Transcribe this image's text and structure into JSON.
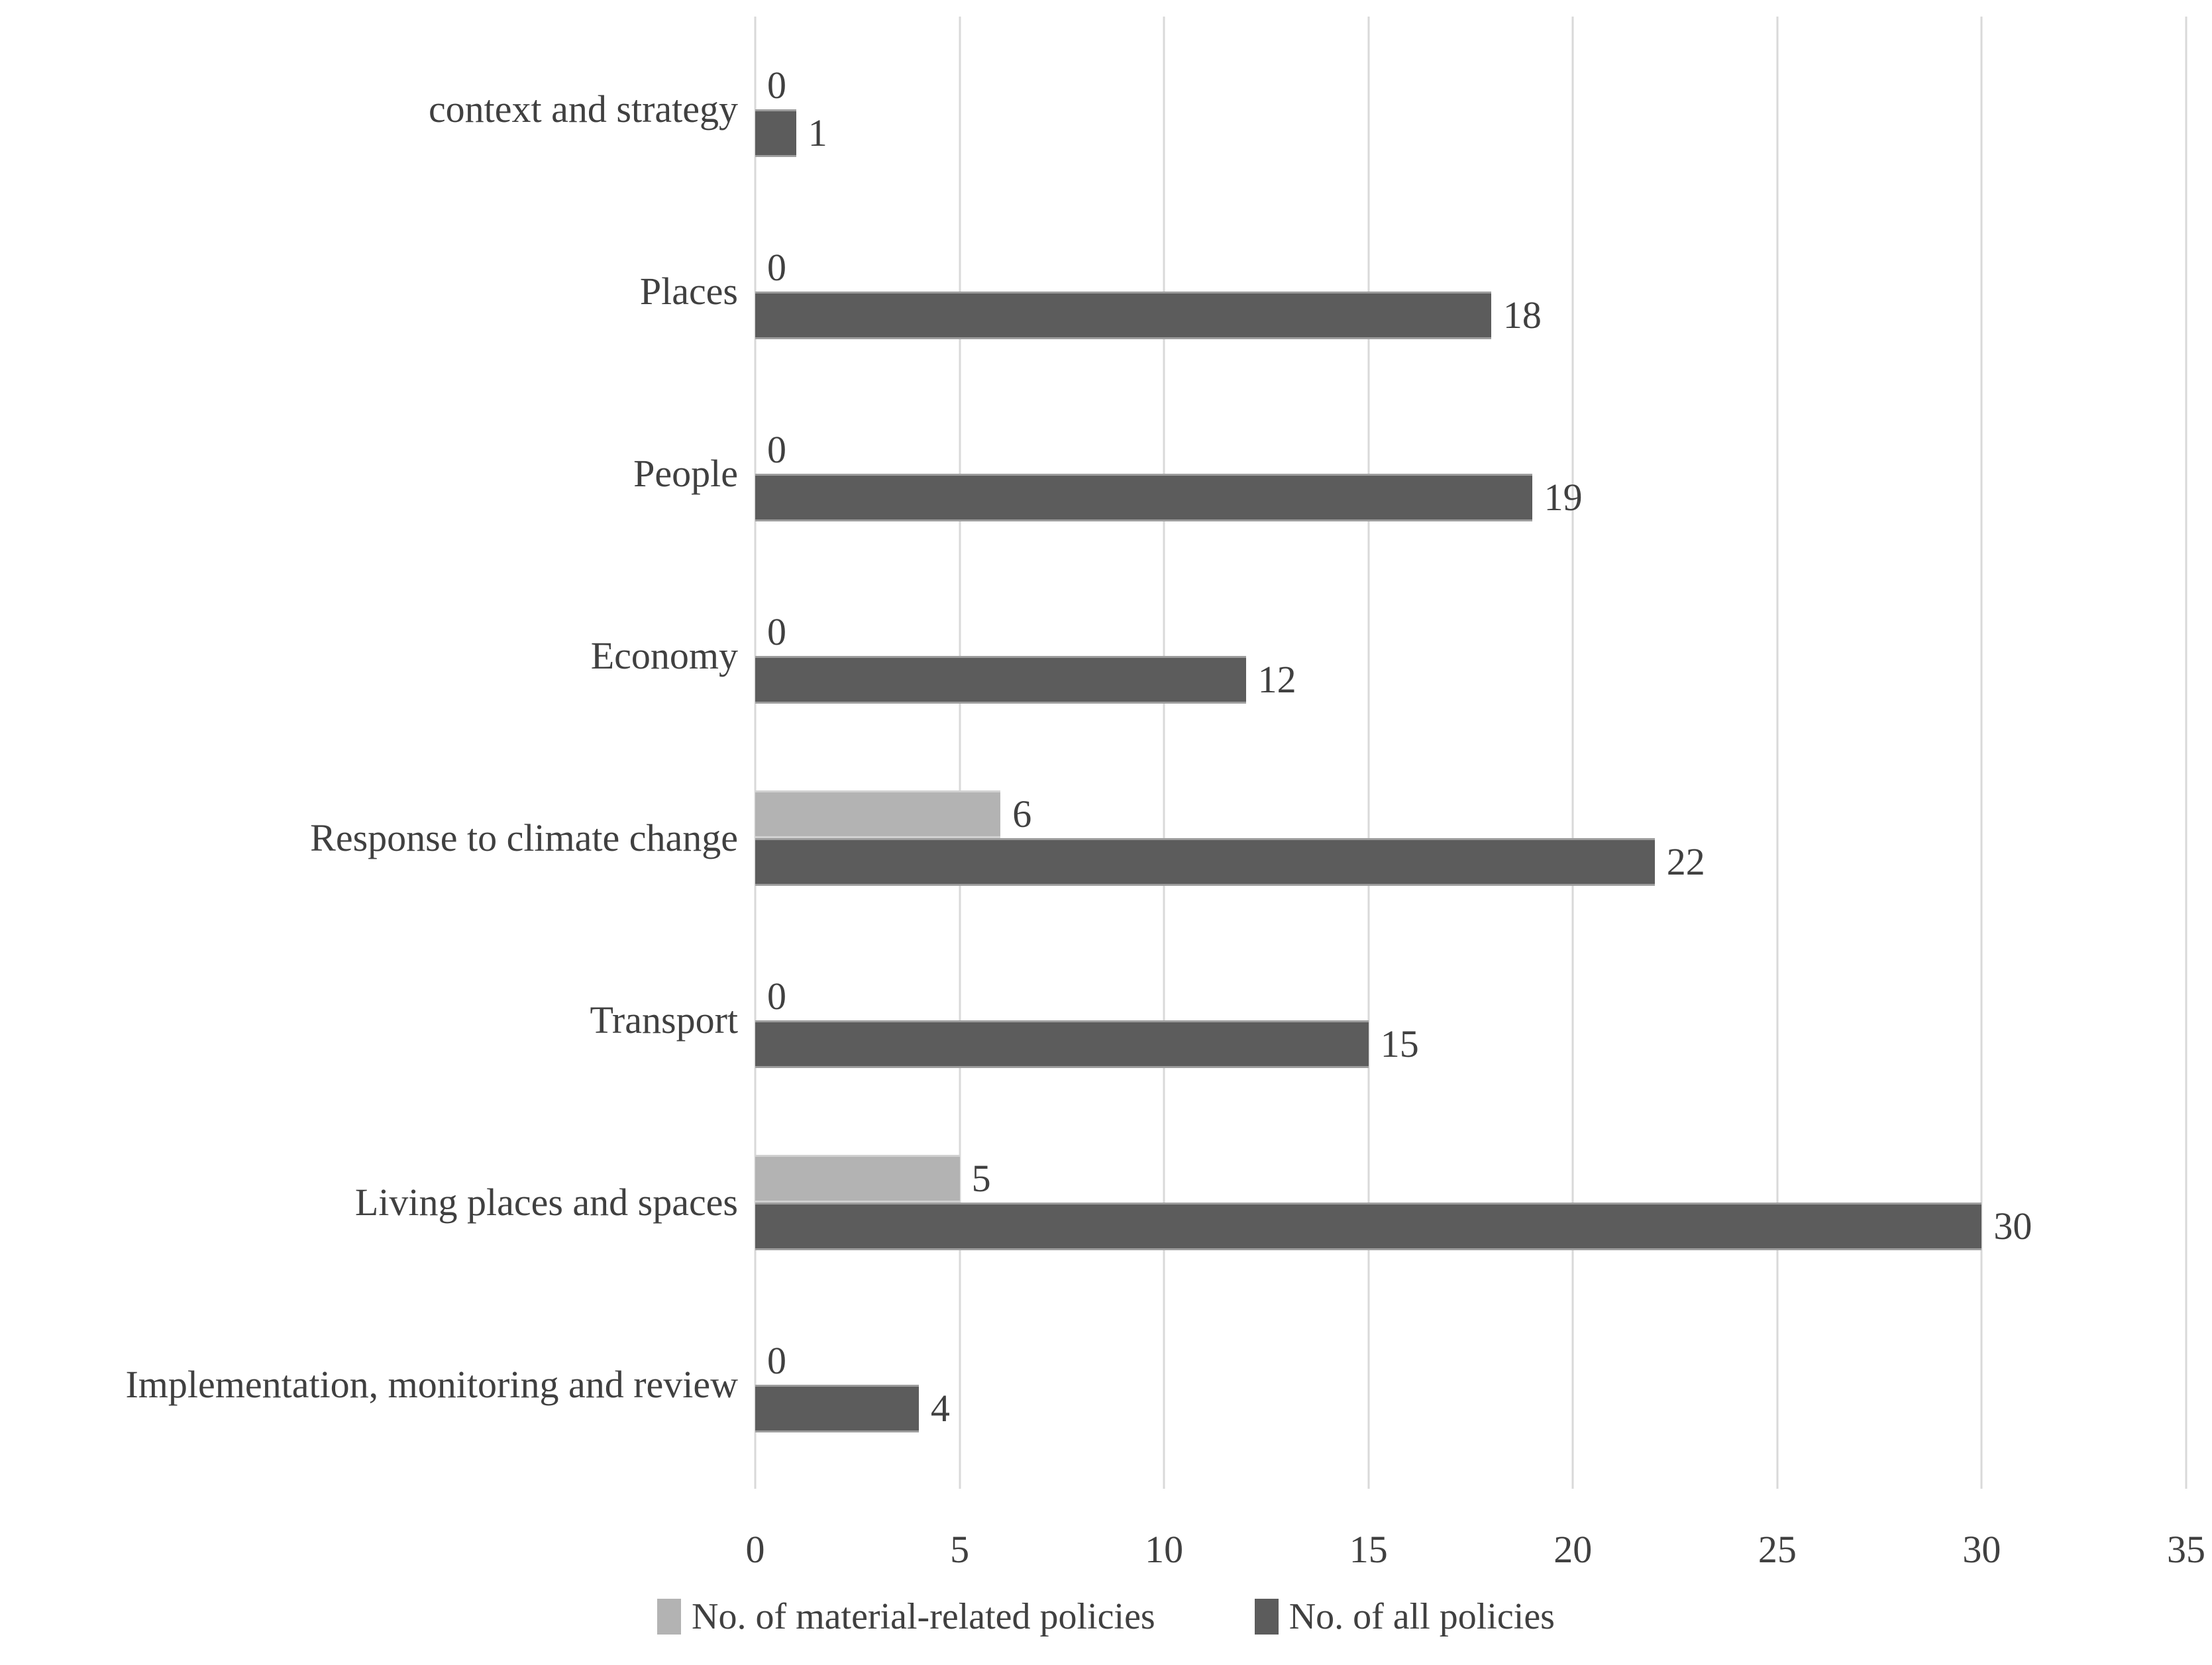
{
  "chart_data": {
    "type": "bar",
    "orientation": "horizontal",
    "categories": [
      "context and strategy",
      "Places",
      "People",
      "Economy",
      "Response to climate change",
      "Transport",
      "Living places and spaces",
      "Implementation, monitoring and review"
    ],
    "series": [
      {
        "name": "No. of material-related policies",
        "color": "#b3b3b3",
        "values": [
          0,
          0,
          0,
          0,
          6,
          0,
          5,
          0
        ]
      },
      {
        "name": "No. of all policies",
        "color": "#5c5c5c",
        "values": [
          1,
          18,
          19,
          12,
          22,
          15,
          30,
          4
        ]
      }
    ],
    "x_ticks": [
      0,
      5,
      10,
      15,
      20,
      25,
      30,
      35
    ],
    "xlim": [
      0,
      35
    ],
    "grid": "vertical",
    "legend_position": "bottom",
    "gridline_color": "#d9d9d9",
    "text_color": "#404040",
    "background": "#ffffff"
  }
}
